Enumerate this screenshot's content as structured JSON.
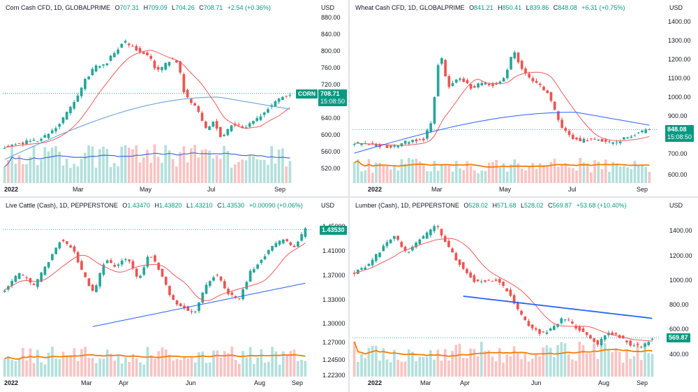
{
  "colors": {
    "up": "#26a69a",
    "down": "#ef5350",
    "ma_fast": "#f05a5a",
    "ma_slow_blue": "#2962ff",
    "ma_slow_light": "#5b9bd5",
    "vol_ma_orange": "#f57c00",
    "tag": "#089981"
  },
  "panels": [
    {
      "id": "corn",
      "legend": {
        "name": "Corn Cash CFD, 1D, GLOBALPRIME",
        "o_label": "O",
        "o": "707.31",
        "h_label": "H",
        "h": "709.09",
        "l_label": "L",
        "l": "704.26",
        "c_label": "C",
        "c": "708.71",
        "chg": "+2.54 (+0.36%)"
      },
      "currency": "USD",
      "y_ticks": [
        "880.00",
        "840.00",
        "800.00",
        "760.00",
        "720.00",
        "680.00",
        "640.00",
        "600.00",
        "560.00",
        "520.00"
      ],
      "x_ticks": [
        {
          "label": "2022",
          "bold": true
        },
        {
          "label": "Mar"
        },
        {
          "label": "May"
        },
        {
          "label": "Jul"
        },
        {
          "label": "Sep"
        }
      ],
      "ticker_tag": "CORN",
      "last_price": "708.71",
      "countdown": "15:08:50"
    },
    {
      "id": "wheat",
      "legend": {
        "name": "Wheat Cash CFD, 1D, GLOBALPRIME",
        "o_label": "O",
        "o": "841.21",
        "h_label": "H",
        "h": "850.41",
        "l_label": "L",
        "l": "839.86",
        "c_label": "C",
        "c": "848.08",
        "chg": "+6.31 (+0.75%)"
      },
      "currency": "USD",
      "y_ticks": [
        "1400.00",
        "1300.00",
        "1200.00",
        "1100.00",
        "1000.00",
        "900.00",
        "800.00",
        "700.00",
        "600.00"
      ],
      "x_ticks": [
        {
          "label": "2022",
          "bold": true
        },
        {
          "label": "Mar"
        },
        {
          "label": "May"
        },
        {
          "label": "Jul"
        },
        {
          "label": "Sep"
        }
      ],
      "ticker_tag": "",
      "last_price": "848.08",
      "countdown": "15:08:50"
    },
    {
      "id": "cattle",
      "legend": {
        "name": "Live Cattle (Cash), 1D, PEPPERSTONE",
        "o_label": "O",
        "o": "1.43470",
        "h_label": "H",
        "h": "1.43820",
        "l_label": "L",
        "l": "1.43210",
        "c_label": "C",
        "c": "1.43530",
        "chg": "+0.00090 (+0.06%)"
      },
      "currency": "USD",
      "y_ticks": [
        "1.45000",
        "1.41000",
        "1.37000",
        "1.33000",
        "1.30000",
        "1.27000",
        "1.24500",
        "1.22300"
      ],
      "x_ticks": [
        {
          "label": "2022",
          "bold": true
        },
        {
          "label": "Mar"
        },
        {
          "label": "Apr"
        },
        {
          "label": "Jun"
        },
        {
          "label": "Aug"
        },
        {
          "label": "Sep"
        }
      ],
      "ticker_tag": "",
      "last_price": "1.43530",
      "countdown": ""
    },
    {
      "id": "lumber",
      "legend": {
        "name": "Lumber (Cash), 1D, PEPPERSTONE",
        "o_label": "O",
        "o": "528.02",
        "h_label": "H",
        "h": "571.68",
        "l_label": "L",
        "l": "528.02",
        "c_label": "C",
        "c": "569.87",
        "chg": "+53.68 (+10.40%)"
      },
      "currency": "USD",
      "y_ticks": [
        "1400.00",
        "1200.00",
        "1000.00",
        "800.00",
        "600.00",
        "400.00"
      ],
      "x_ticks": [
        {
          "label": "2022",
          "bold": true
        },
        {
          "label": "Mar"
        },
        {
          "label": "Apr"
        },
        {
          "label": "Jun"
        },
        {
          "label": "Aug"
        },
        {
          "label": "Sep"
        }
      ],
      "ticker_tag": "",
      "last_price": "569.87",
      "countdown": ""
    }
  ],
  "chart_data": [
    {
      "type": "candlestick",
      "symbol": "Corn Cash CFD, 1D, GLOBALPRIME",
      "ylim": [
        500,
        890
      ],
      "x_labels": [
        "2022",
        "Mar",
        "May",
        "Jul",
        "Sep"
      ],
      "close_path": [
        [
          0,
          583
        ],
        [
          5,
          594
        ],
        [
          10,
          601
        ],
        [
          14,
          625
        ],
        [
          18,
          672
        ],
        [
          20,
          700
        ],
        [
          22,
          735
        ],
        [
          25,
          770
        ],
        [
          28,
          776
        ],
        [
          30,
          800
        ],
        [
          33,
          830
        ],
        [
          35,
          818
        ],
        [
          38,
          805
        ],
        [
          40,
          795
        ],
        [
          42,
          760
        ],
        [
          44,
          770
        ],
        [
          46,
          790
        ],
        [
          48,
          780
        ],
        [
          50,
          700
        ],
        [
          53,
          680
        ],
        [
          56,
          620
        ],
        [
          58,
          645
        ],
        [
          60,
          600
        ],
        [
          63,
          640
        ],
        [
          66,
          625
        ],
        [
          68,
          640
        ],
        [
          70,
          650
        ],
        [
          73,
          675
        ],
        [
          76,
          695
        ],
        [
          79,
          708.71
        ]
      ],
      "series": [
        {
          "name": "SMA fast",
          "values_shape": "tracks price with lag"
        },
        {
          "name": "SMA slow",
          "start": 555,
          "peak": 700,
          "end": 672
        }
      ],
      "last": 708.71
    },
    {
      "type": "candlestick",
      "symbol": "Wheat Cash CFD, 1D, GLOBALPRIME",
      "ylim": [
        580,
        1420
      ],
      "x_labels": [
        "2022",
        "Mar",
        "May",
        "Jul",
        "Sep"
      ],
      "close_path": [
        [
          0,
          780
        ],
        [
          5,
          770
        ],
        [
          10,
          760
        ],
        [
          14,
          790
        ],
        [
          18,
          800
        ],
        [
          20,
          900
        ],
        [
          22,
          1250
        ],
        [
          24,
          1060
        ],
        [
          27,
          1110
        ],
        [
          30,
          1060
        ],
        [
          33,
          1080
        ],
        [
          36,
          1070
        ],
        [
          39,
          1120
        ],
        [
          41,
          1250
        ],
        [
          43,
          1150
        ],
        [
          45,
          1110
        ],
        [
          47,
          1080
        ],
        [
          50,
          1030
        ],
        [
          53,
          870
        ],
        [
          55,
          820
        ],
        [
          58,
          790
        ],
        [
          61,
          800
        ],
        [
          64,
          790
        ],
        [
          67,
          780
        ],
        [
          70,
          810
        ],
        [
          73,
          830
        ],
        [
          76,
          848.08
        ]
      ],
      "series": [
        {
          "name": "SMA slow",
          "start": 730,
          "peak": 935,
          "end": 870
        }
      ],
      "last": 848.08
    },
    {
      "type": "candlestick",
      "symbol": "Live Cattle (Cash), 1D, PEPPERSTONE",
      "ylim": [
        1.215,
        1.46
      ],
      "x_labels": [
        "2022",
        "Mar",
        "Apr",
        "Jun",
        "Aug",
        "Sep"
      ],
      "close_path": [
        [
          0,
          1.345
        ],
        [
          4,
          1.37
        ],
        [
          8,
          1.35
        ],
        [
          12,
          1.39
        ],
        [
          15,
          1.42
        ],
        [
          18,
          1.41
        ],
        [
          21,
          1.37
        ],
        [
          24,
          1.34
        ],
        [
          27,
          1.39
        ],
        [
          30,
          1.38
        ],
        [
          33,
          1.395
        ],
        [
          36,
          1.36
        ],
        [
          39,
          1.4
        ],
        [
          42,
          1.37
        ],
        [
          45,
          1.33
        ],
        [
          48,
          1.32
        ],
        [
          51,
          1.31
        ],
        [
          54,
          1.35
        ],
        [
          57,
          1.37
        ],
        [
          60,
          1.34
        ],
        [
          63,
          1.33
        ],
        [
          66,
          1.37
        ],
        [
          69,
          1.39
        ],
        [
          72,
          1.41
        ],
        [
          75,
          1.42
        ],
        [
          78,
          1.41
        ],
        [
          81,
          1.435
        ]
      ],
      "series": [
        {
          "name": "SMA slow",
          "start": 1.29,
          "end": 1.355
        }
      ],
      "last": 1.4353
    },
    {
      "type": "candlestick",
      "symbol": "Lumber (Cash), 1D, PEPPERSTONE",
      "ylim": [
        280,
        1500
      ],
      "x_labels": [
        "2022",
        "Mar",
        "Apr",
        "Jun",
        "Aug",
        "Sep"
      ],
      "close_path": [
        [
          0,
          1050
        ],
        [
          4,
          1120
        ],
        [
          8,
          1250
        ],
        [
          11,
          1330
        ],
        [
          14,
          1200
        ],
        [
          17,
          1280
        ],
        [
          20,
          1350
        ],
        [
          22,
          1420
        ],
        [
          24,
          1320
        ],
        [
          27,
          1180
        ],
        [
          30,
          1080
        ],
        [
          33,
          980
        ],
        [
          36,
          1000
        ],
        [
          39,
          1000
        ],
        [
          42,
          900
        ],
        [
          45,
          750
        ],
        [
          48,
          650
        ],
        [
          51,
          600
        ],
        [
          54,
          650
        ],
        [
          57,
          720
        ],
        [
          60,
          650
        ],
        [
          63,
          600
        ],
        [
          66,
          520
        ],
        [
          69,
          600
        ],
        [
          72,
          580
        ],
        [
          75,
          520
        ],
        [
          78,
          500
        ],
        [
          81,
          569.87
        ]
      ],
      "series": [
        {
          "name": "SMA slow",
          "start": 880,
          "end": 715
        }
      ],
      "last": 569.87
    }
  ]
}
